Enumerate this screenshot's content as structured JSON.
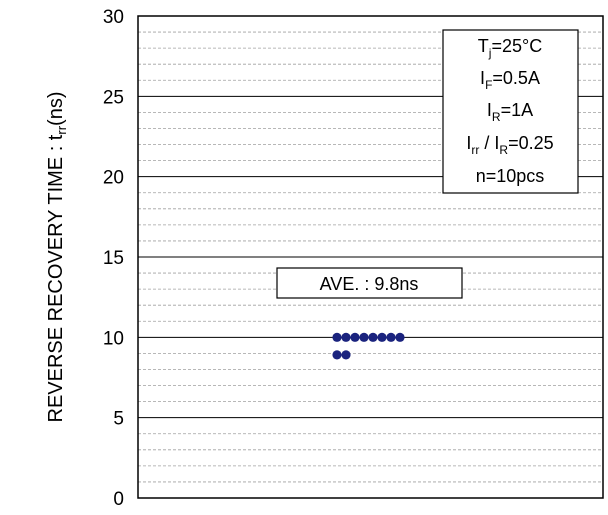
{
  "chart_data": {
    "type": "scatter",
    "ylabel": {
      "main": "REVERSE RECOVERY TIME : t",
      "sub": "rr",
      "unit": "(ns)"
    },
    "ylim": [
      0,
      30
    ],
    "y_ticks": [
      "0",
      "5",
      "10",
      "15",
      "20",
      "25",
      "30"
    ],
    "y_tick_values": [
      0,
      5,
      10,
      15,
      20,
      25,
      30
    ],
    "minor_grid_step": 1,
    "major_grid_step": 5,
    "series": [
      {
        "color": "#1a237e",
        "values": [
          10.0,
          10.0,
          10.0,
          10.0,
          10.0,
          10.0,
          10.0,
          10.0,
          9.0,
          9.0
        ]
      }
    ],
    "conditions": [
      {
        "pre": "T",
        "sub": "j",
        "post": "=25°C"
      },
      {
        "pre": "I",
        "sub": "F",
        "post": "=0.5A"
      },
      {
        "pre": "I",
        "sub": "R",
        "post": "=1A"
      },
      {
        "pre": "I",
        "sub": "rr",
        "mid": " / I",
        "sub2": "R",
        "post": "=0.25"
      },
      {
        "pre": "n=10pcs",
        "sub": "",
        "post": ""
      }
    ],
    "average_label": "AVE. : 9.8ns",
    "average_value": 9.8
  }
}
